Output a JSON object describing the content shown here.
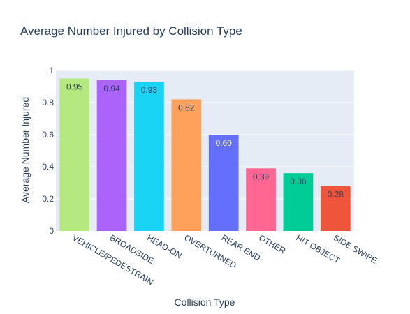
{
  "chart_data": {
    "type": "bar",
    "title": "Average Number Injured by Collision Type",
    "xlabel": "Collision Type",
    "ylabel": "Average Number Injured",
    "ylim": [
      0,
      1
    ],
    "yticks": [
      0,
      0.2,
      0.4,
      0.6,
      0.8,
      1
    ],
    "ytick_labels": [
      "0",
      "0.2",
      "0.4",
      "0.6",
      "0.8",
      "1"
    ],
    "grid": true,
    "legend": "none",
    "categories": [
      "VEHICLE/PEDESTRAIN",
      "BROADSIDE",
      "HEAD-ON",
      "OVERTURNED",
      "REAR END",
      "OTHER",
      "HIT OBJECT",
      "SIDE SWIPE"
    ],
    "values": [
      0.95,
      0.94,
      0.93,
      0.82,
      0.6,
      0.39,
      0.36,
      0.28
    ],
    "value_labels": [
      "0.95",
      "0.94",
      "0.93",
      "0.82",
      "0.60",
      "0.39",
      "0.36",
      "0.28"
    ],
    "colors": [
      "#b6e880",
      "#ab63fa",
      "#19d3f3",
      "#ffa15a",
      "#636efa",
      "#ff6692",
      "#00cc96",
      "#ef553b"
    ],
    "label_colors": [
      "#2a3f5f",
      "#2a3f5f",
      "#2a3f5f",
      "#2a3f5f",
      "#ffffff",
      "#2a3f5f",
      "#2a3f5f",
      "#2a3f5f"
    ],
    "plot_background": "#e5ecf6",
    "gridline_color": "#ffffff"
  }
}
